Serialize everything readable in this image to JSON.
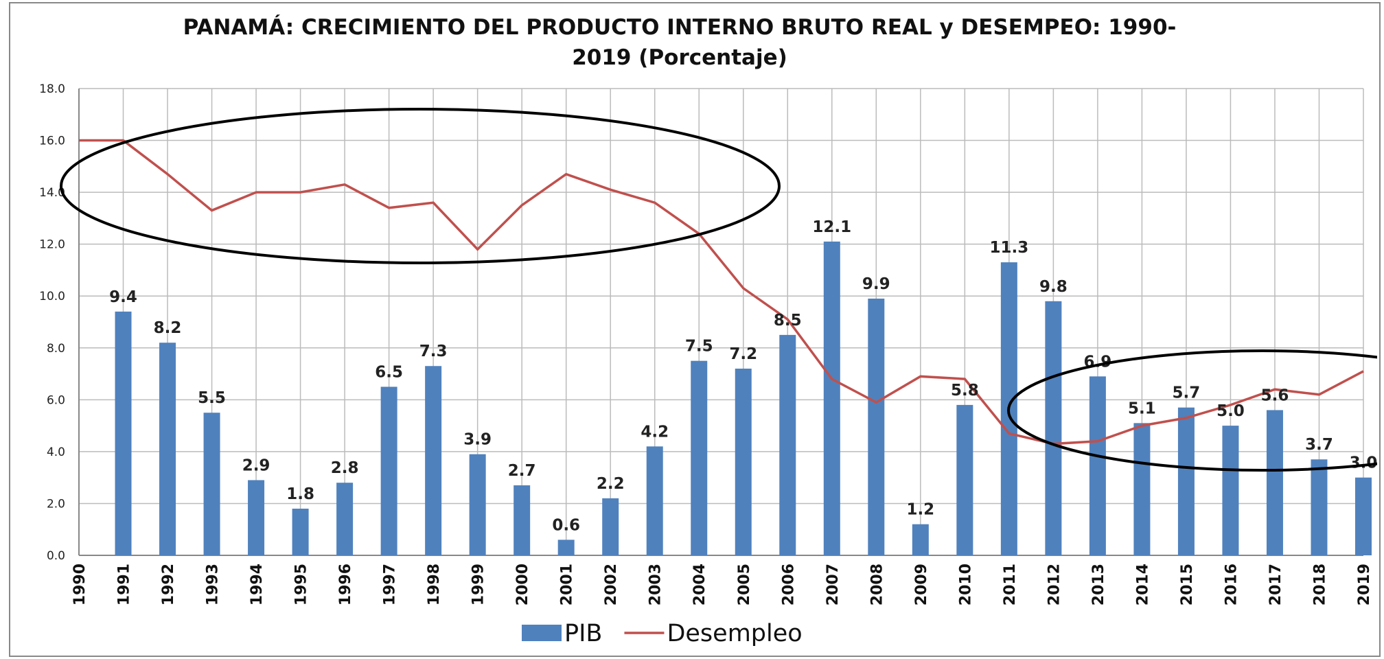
{
  "chart_data": {
    "type": "bar-line",
    "title": "PANAMÁ: CRECIMIENTO DEL PRODUCTO INTERNO BRUTO REAL y DESEMPEO: 1990-2019 (Porcentaje)",
    "categories": [
      "1990",
      "1991",
      "1992",
      "1993",
      "1994",
      "1995",
      "1996",
      "1997",
      "1998",
      "1999",
      "2000",
      "2001",
      "2002",
      "2003",
      "2004",
      "2005",
      "2006",
      "2007",
      "2008",
      "2009",
      "2010",
      "2011",
      "2012",
      "2013",
      "2014",
      "2015",
      "2016",
      "2017",
      "2018",
      "2019"
    ],
    "series": [
      {
        "name": "PIB",
        "type": "bar",
        "color": "#4f81bd",
        "values": [
          null,
          9.4,
          8.2,
          5.5,
          2.9,
          1.8,
          2.8,
          6.5,
          7.3,
          3.9,
          2.7,
          0.6,
          2.2,
          4.2,
          7.5,
          7.2,
          8.5,
          12.1,
          9.9,
          1.2,
          5.8,
          11.3,
          9.8,
          6.9,
          5.1,
          5.7,
          5.0,
          5.6,
          3.7,
          3.0
        ],
        "value_labels": [
          null,
          "9.4",
          "8.2",
          "5.5",
          "2.9",
          "1.8",
          "2.8",
          "6.5",
          "7.3",
          "3.9",
          "2.7",
          "0.6",
          "2.2",
          "4.2",
          "7.5",
          "7.2",
          "8.5",
          "12.1",
          "9.9",
          "1.2",
          "5.8",
          "11.3",
          "9.8",
          "6.9",
          "5.1",
          "5.7",
          "5.0",
          "5.6",
          "3.7",
          "3.0"
        ]
      },
      {
        "name": "Desempleo",
        "type": "line",
        "color": "#c0504d",
        "values": [
          16.0,
          16.0,
          14.7,
          13.3,
          14.0,
          14.0,
          14.3,
          13.4,
          13.6,
          11.8,
          13.5,
          14.7,
          14.1,
          13.6,
          12.4,
          10.3,
          9.1,
          6.8,
          5.9,
          6.9,
          6.8,
          4.7,
          4.3,
          4.4,
          5.0,
          5.3,
          5.8,
          6.4,
          6.2,
          7.1
        ]
      }
    ],
    "ylim": [
      0,
      18
    ],
    "yticks": [
      {
        "value": 0,
        "label": "0.0"
      },
      {
        "value": 2,
        "label": "2.0"
      },
      {
        "value": 4,
        "label": "4.0"
      },
      {
        "value": 6,
        "label": "6.0"
      },
      {
        "value": 8,
        "label": "8.0"
      },
      {
        "value": 10,
        "label": "10.0"
      },
      {
        "value": 12,
        "label": "12.0"
      },
      {
        "value": 14,
        "label": "14.0"
      },
      {
        "value": 16,
        "label": "16.0"
      },
      {
        "value": 18,
        "label": "18.0"
      }
    ],
    "grid": true,
    "legend": "bottom"
  }
}
